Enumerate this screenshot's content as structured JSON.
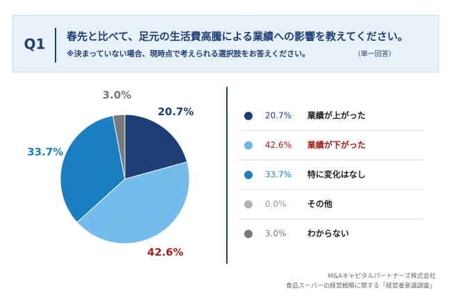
{
  "header": {
    "q": "Q1",
    "title": "春先と比べて、足元の生活費高騰による業績への影響を教えてください。",
    "note": "※決まっていない場合、現時点で考えられる選択肢をお答えください。",
    "answer_type": "（単一回答）"
  },
  "chart_data": {
    "type": "pie",
    "categories": [
      "業績が上がった",
      "業績が下がった",
      "特に変化はなし",
      "その他",
      "わからない"
    ],
    "values": [
      20.7,
      42.6,
      33.7,
      0.0,
      3.0
    ],
    "value_labels": [
      "20.7%",
      "42.6%",
      "33.7%",
      "0.0%",
      "3.0%"
    ],
    "colors": [
      "#1d3f75",
      "#6bb6ea",
      "#1a7fc1",
      "#b3b3b3",
      "#7a7a7a"
    ],
    "label_colors": [
      "#1d3f75",
      "#a31d1d",
      "#1a7fc1",
      "#999999",
      "#777777"
    ],
    "category_colors": [
      "#222222",
      "#a31d1d",
      "#222222",
      "#222222",
      "#222222"
    ]
  },
  "source": [
    "M&Aキャピタルパートナーズ株式会社",
    "食品スーパーの経営戦略に関する「経営者意識調査」"
  ]
}
